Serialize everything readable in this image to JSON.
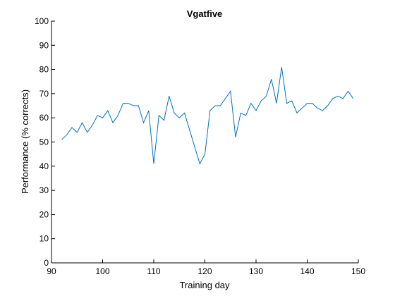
{
  "chart_data": {
    "type": "line",
    "title": "Vgatfive",
    "xlabel": "Training day",
    "ylabel": "Performance (% corrects)",
    "xlim": [
      90,
      150
    ],
    "ylim": [
      0,
      100
    ],
    "xticks": [
      90,
      100,
      110,
      120,
      130,
      140,
      150
    ],
    "yticks": [
      0,
      10,
      20,
      30,
      40,
      50,
      60,
      70,
      80,
      90,
      100
    ],
    "grid": false,
    "line_color": "#0072BD",
    "series": [
      {
        "x": [
          92,
          93,
          94,
          95,
          96,
          97,
          98,
          99,
          100,
          101,
          102,
          103,
          104,
          105,
          106,
          107,
          108,
          109,
          110,
          111,
          112,
          113,
          114,
          115,
          116,
          117,
          118,
          119,
          120,
          121,
          122,
          123,
          124,
          125,
          126,
          127,
          128,
          129,
          130,
          131,
          132,
          133,
          134,
          135,
          136,
          137,
          138,
          139,
          140,
          141,
          142,
          143,
          144,
          145,
          146,
          147,
          148,
          149
        ],
        "y": [
          51,
          53,
          56,
          54,
          58,
          54,
          57,
          61,
          60,
          63,
          58,
          61,
          66,
          66,
          65,
          65,
          58,
          63,
          41,
          61,
          59,
          69,
          62,
          60,
          62,
          55,
          48,
          41,
          45,
          63,
          65,
          65,
          68,
          71,
          52,
          62,
          61,
          66,
          63,
          67,
          69,
          76,
          66,
          81,
          66,
          67,
          62,
          64,
          66,
          66,
          64,
          63,
          65,
          68,
          69,
          68,
          71,
          68
        ]
      }
    ]
  }
}
